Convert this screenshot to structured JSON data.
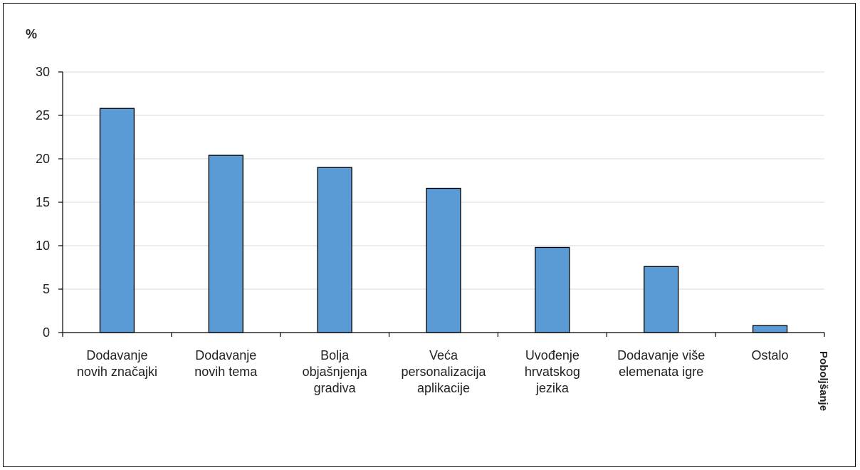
{
  "chart_data": {
    "type": "bar",
    "ylabel": "%",
    "xlabel": "Poboljšanje",
    "ylim": [
      0,
      30
    ],
    "yticks": [
      "0",
      "5",
      "10",
      "15",
      "20",
      "25",
      "30"
    ],
    "grid": true,
    "bar_color": "#5b9bd5",
    "categories": [
      [
        "Dodavanje",
        "novih značajki"
      ],
      [
        "Dodavanje",
        "novih tema"
      ],
      [
        "Bolja",
        "objašnjenja",
        "gradiva"
      ],
      [
        "Veća",
        "personalizacija",
        "aplikacije"
      ],
      [
        "Uvođenje",
        "hrvatskog",
        "jezika"
      ],
      [
        "Dodavanje više",
        "elemenata igre"
      ],
      [
        "Ostalo"
      ]
    ],
    "values": [
      25.8,
      20.4,
      19.0,
      16.6,
      9.8,
      7.6,
      0.8
    ]
  }
}
